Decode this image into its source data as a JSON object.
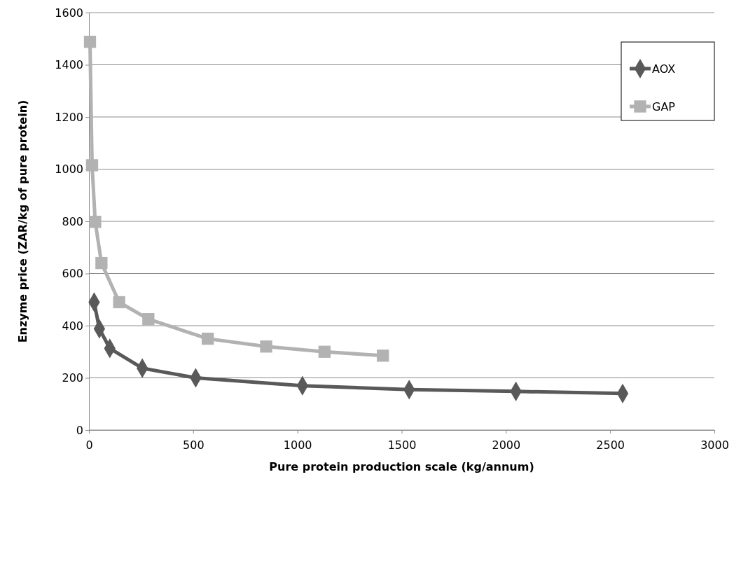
{
  "chart_data": {
    "type": "line",
    "xlabel": "Pure protein production scale (kg/annum)",
    "ylabel": "Enzyme price (ZAR/kg of pure protein)",
    "xlim": [
      0,
      3000
    ],
    "xticks": [
      0,
      500,
      1000,
      1500,
      2000,
      2500,
      3000
    ],
    "ylim": [
      0,
      1600
    ],
    "yticks": [
      0,
      200,
      400,
      600,
      800,
      1000,
      1200,
      1400,
      1600
    ],
    "grid": "y",
    "legend": "top right",
    "line_style": "solid",
    "series": [
      {
        "name": "AOX",
        "color": "#595959",
        "marker": "diamond",
        "x": [
          25,
          50,
          100,
          256,
          512,
          1024,
          1536,
          2048,
          2560
        ],
        "values": [
          490,
          388,
          313,
          237,
          200,
          170,
          155,
          148,
          140
        ]
      },
      {
        "name": "GAP",
        "color": "#b2b2b2",
        "marker": "square",
        "x": [
          5,
          15,
          30,
          60,
          145,
          285,
          570,
          850,
          1130,
          1410
        ],
        "values": [
          1488,
          1015,
          798,
          640,
          490,
          425,
          350,
          320,
          300,
          285
        ]
      }
    ]
  }
}
